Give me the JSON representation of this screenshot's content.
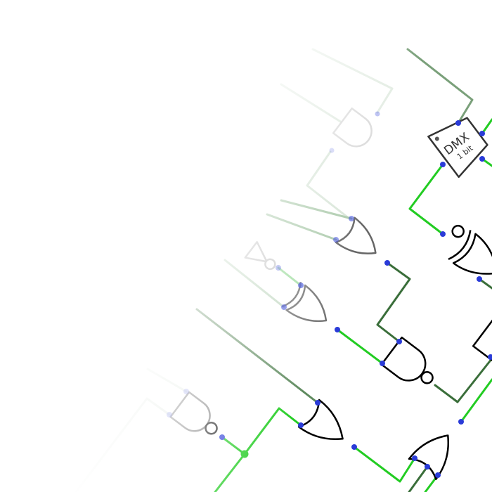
{
  "diagram": {
    "dmx": {
      "label": "DMX",
      "sublabel": "1 bit"
    }
  },
  "colors": {
    "wire_high": "#22cc22",
    "wire_low": "#3a6e3a",
    "wire_faded": "#b8d4b8",
    "gate_stroke": "#000000",
    "pin": "#2a3bd8",
    "junction": "#22cc22",
    "background": "#ffffff"
  },
  "icons": [
    "dmx-block",
    "and-gate",
    "nand-gate",
    "or-gate",
    "xor-gate",
    "xnor-gate",
    "not-gate"
  ]
}
